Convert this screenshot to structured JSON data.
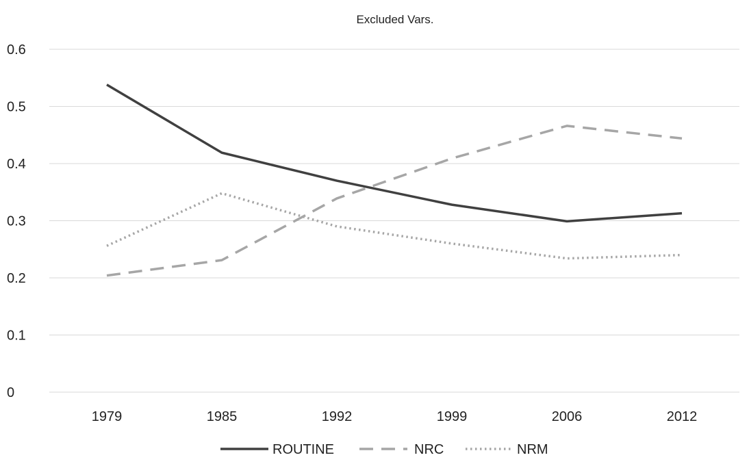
{
  "chart_data": {
    "type": "line",
    "title": "Excluded Vars.",
    "xlabel": "",
    "ylabel": "",
    "categories": [
      "1979",
      "1985",
      "1992",
      "1999",
      "2006",
      "2012"
    ],
    "ylim": [
      0,
      0.6
    ],
    "yticks": [
      0,
      0.1,
      0.2,
      0.3,
      0.4,
      0.5,
      0.6
    ],
    "ytick_labels": [
      "0",
      "0.1",
      "0.2",
      "0.3",
      "0.4",
      "0.5",
      "0.6"
    ],
    "grid": true,
    "legend_position": "bottom",
    "series": [
      {
        "name": "ROUTINE",
        "values": [
          0.538,
          0.419,
          0.37,
          0.328,
          0.299,
          0.313
        ],
        "color": "#404040",
        "style": "solid"
      },
      {
        "name": "NRC",
        "values": [
          0.204,
          0.231,
          0.339,
          0.409,
          0.466,
          0.444
        ],
        "color": "#a6a6a6",
        "style": "dashed"
      },
      {
        "name": "NRM",
        "values": [
          0.256,
          0.348,
          0.29,
          0.26,
          0.234,
          0.24
        ],
        "color": "#a6a6a6",
        "style": "dotted"
      }
    ]
  }
}
